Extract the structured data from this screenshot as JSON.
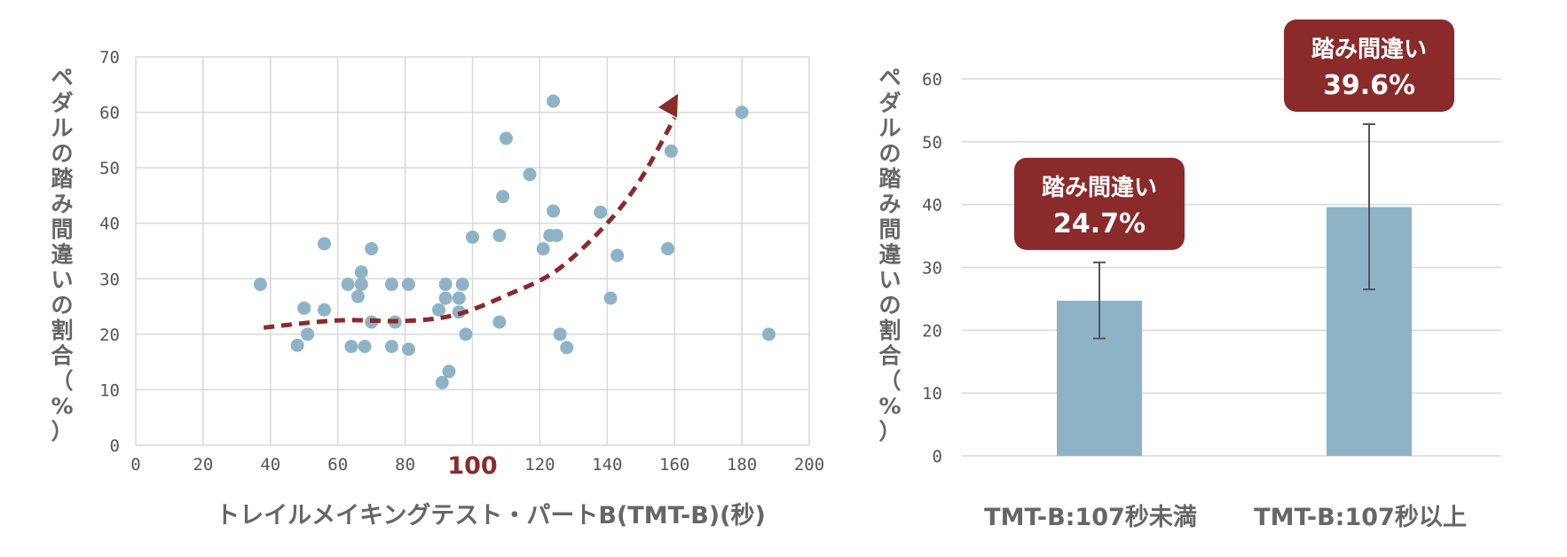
{
  "chart_data": [
    {
      "type": "scatter",
      "xlabel": "トレイルメイキングテスト・パートB(TMT-B)(秒)",
      "ylabel": "ペダルの踏み間違いの割合（%）",
      "xlim": [
        0,
        200
      ],
      "ylim": [
        0,
        70
      ],
      "xticks": [
        0,
        20,
        40,
        60,
        80,
        100,
        120,
        140,
        160,
        180,
        200
      ],
      "yticks": [
        0,
        10,
        20,
        30,
        40,
        50,
        60,
        70
      ],
      "highlight_tick": {
        "value": 100,
        "label": "100",
        "color": "#8b2a2a"
      },
      "grid": true,
      "point_color": "#8fb3c6",
      "trend_color": "#8b2a2a",
      "trend_style": "dashed-arrow",
      "trend_points": [
        [
          38,
          21.2
        ],
        [
          60,
          22.5
        ],
        [
          80,
          22.4
        ],
        [
          95,
          23.5
        ],
        [
          110,
          27
        ],
        [
          125,
          31.5
        ],
        [
          140,
          40
        ],
        [
          150,
          48
        ],
        [
          160,
          59
        ]
      ],
      "points": [
        [
          37,
          29.0
        ],
        [
          48,
          18.0
        ],
        [
          50,
          24.7
        ],
        [
          51,
          20.0
        ],
        [
          56,
          36.3
        ],
        [
          56,
          24.4
        ],
        [
          63,
          29.0
        ],
        [
          64,
          17.8
        ],
        [
          66,
          26.8
        ],
        [
          67,
          31.2
        ],
        [
          67,
          29.0
        ],
        [
          68,
          17.8
        ],
        [
          70,
          35.4
        ],
        [
          70,
          22.2
        ],
        [
          76,
          29.0
        ],
        [
          76,
          17.8
        ],
        [
          77,
          22.2
        ],
        [
          81,
          29.0
        ],
        [
          81,
          17.3
        ],
        [
          90,
          24.4
        ],
        [
          91,
          11.3
        ],
        [
          92,
          26.5
        ],
        [
          92,
          29.0
        ],
        [
          93,
          13.3
        ],
        [
          96,
          26.5
        ],
        [
          96,
          24.0
        ],
        [
          97,
          29.0
        ],
        [
          98,
          20.0
        ],
        [
          100,
          37.5
        ],
        [
          108,
          37.8
        ],
        [
          108,
          22.2
        ],
        [
          109,
          44.8
        ],
        [
          110,
          55.3
        ],
        [
          117,
          48.8
        ],
        [
          121,
          35.4
        ],
        [
          123,
          37.8
        ],
        [
          124,
          42.2
        ],
        [
          125,
          37.8
        ],
        [
          124,
          62.0
        ],
        [
          126,
          20.0
        ],
        [
          128,
          17.6
        ],
        [
          138,
          42.0
        ],
        [
          141,
          26.5
        ],
        [
          143,
          34.2
        ],
        [
          158,
          35.4
        ],
        [
          159,
          53.0
        ],
        [
          180,
          60.0
        ],
        [
          188,
          20.0
        ]
      ]
    },
    {
      "type": "bar",
      "ylabel": "ペダルの踏み間違いの割合（%）",
      "ylim": [
        0,
        60
      ],
      "yticks": [
        0,
        10,
        20,
        30,
        40,
        50,
        60
      ],
      "grid": true,
      "categories": [
        "TMT-B:107秒未満",
        "TMT-B:107秒以上"
      ],
      "values": [
        24.7,
        39.6
      ],
      "error_low": [
        18.7,
        26.5
      ],
      "error_high": [
        30.8,
        52.8
      ],
      "bar_color": "#8fb3c6",
      "callouts": [
        {
          "line1": "踏み間違い",
          "line2": "24.7%"
        },
        {
          "line1": "踏み間違い",
          "line2": "39.6%"
        }
      ],
      "callout_color": "#8b2a2a"
    }
  ]
}
